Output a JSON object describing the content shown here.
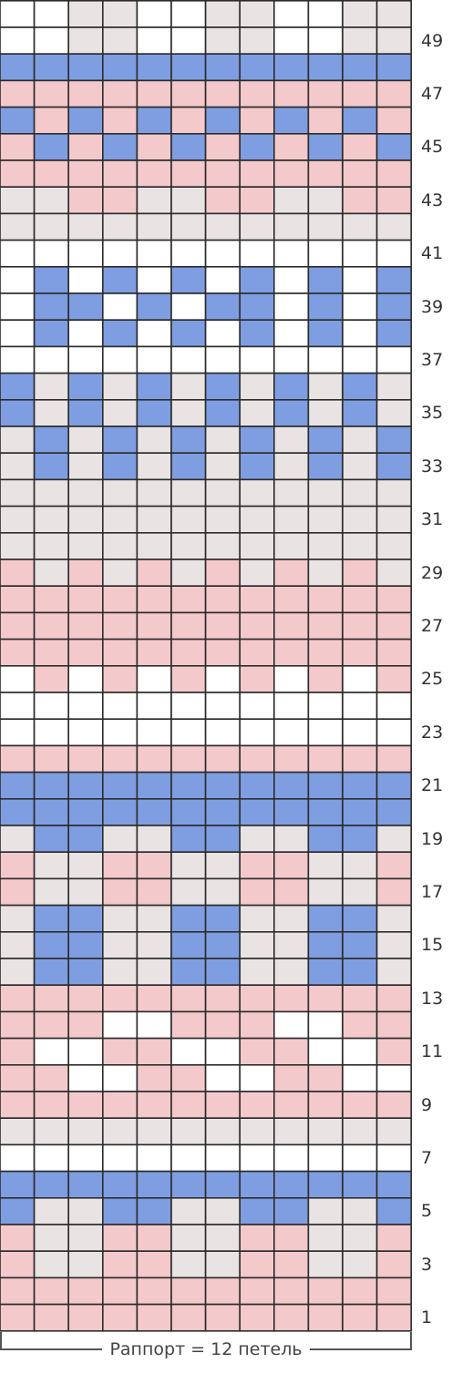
{
  "colors": {
    "W": "#ffffff",
    "G": "#e9e4e3",
    "P": "#f4c9cb",
    "B": "#7f9ee1",
    "grid": "#2b2b2b"
  },
  "legend_values": {
    "W": "white",
    "G": "light-grey",
    "P": "pink",
    "B": "blue"
  },
  "grid": {
    "columns": 12,
    "top_partial_row": "WWGGWWGGWWGG",
    "rows": [
      {
        "n": 1,
        "cells": "PPPPPPPPPPPP"
      },
      {
        "n": 2,
        "cells": "PPPPPPPPPPPP"
      },
      {
        "n": 3,
        "cells": "PGGPPGGPPGGP"
      },
      {
        "n": 4,
        "cells": "PGGPPGGPPGGP"
      },
      {
        "n": 5,
        "cells": "BGGBBGGBBGGB"
      },
      {
        "n": 6,
        "cells": "BBBBBBBBBBBB"
      },
      {
        "n": 7,
        "cells": "WWWWWWWWWWWW"
      },
      {
        "n": 8,
        "cells": "GGGGGGGGGGGG"
      },
      {
        "n": 9,
        "cells": "PPPPPPPPPPPP"
      },
      {
        "n": 10,
        "cells": "PPWWPPWWPPWW"
      },
      {
        "n": 11,
        "cells": "PWWPPWWPPWWP"
      },
      {
        "n": 12,
        "cells": "PPPWWPPPWWPP"
      },
      {
        "n": 13,
        "cells": "PPPPPPPPPPPP"
      },
      {
        "n": 14,
        "cells": "GBBGGBBGGBBG"
      },
      {
        "n": 15,
        "cells": "GBBGGBBGGBBG"
      },
      {
        "n": 16,
        "cells": "GBBGGBBGGBBG"
      },
      {
        "n": 17,
        "cells": "PGGPPGGPPGGP"
      },
      {
        "n": 18,
        "cells": "PGGPPGGPPGGP"
      },
      {
        "n": 19,
        "cells": "GBBGGBBGGBBG"
      },
      {
        "n": 20,
        "cells": "BBBBBBBBBBBB"
      },
      {
        "n": 21,
        "cells": "BBBBBBBBBBBB"
      },
      {
        "n": 22,
        "cells": "PPPPPPPPPPPP"
      },
      {
        "n": 23,
        "cells": "WWWWWWWWWWWW"
      },
      {
        "n": 24,
        "cells": "WWWWWWWWWWWW"
      },
      {
        "n": 25,
        "cells": "WPWPWPWPWPWP"
      },
      {
        "n": 26,
        "cells": "PPPPPPPPPPPP"
      },
      {
        "n": 27,
        "cells": "PPPPPPPPPPPP"
      },
      {
        "n": 28,
        "cells": "PPPPPPPPPPPP"
      },
      {
        "n": 29,
        "cells": "PGPGPGPGPGPG"
      },
      {
        "n": 30,
        "cells": "GGGGGGGGGGGG"
      },
      {
        "n": 31,
        "cells": "GGGGGGGGGGGG"
      },
      {
        "n": 32,
        "cells": "GGGGGGGGGGGG"
      },
      {
        "n": 33,
        "cells": "GBGBGBGBGBGB"
      },
      {
        "n": 34,
        "cells": "GBGBGBGBGBGB"
      },
      {
        "n": 35,
        "cells": "BGBGBGBGBGBG"
      },
      {
        "n": 36,
        "cells": "BGBGBGBGBGBG"
      },
      {
        "n": 37,
        "cells": "WWWWWWWWWWWW"
      },
      {
        "n": 38,
        "cells": "WBWBWBWBWBWB"
      },
      {
        "n": 39,
        "cells": "WBBWBWBBWBWB"
      },
      {
        "n": 40,
        "cells": "WBWBWBWBWBWB"
      },
      {
        "n": 41,
        "cells": "WWWWWWWWWWWW"
      },
      {
        "n": 42,
        "cells": "GGGGGGGGGGGG"
      },
      {
        "n": 43,
        "cells": "GGPPGGPPGGPP"
      },
      {
        "n": 44,
        "cells": "PPPPPPPPPPPP"
      },
      {
        "n": 45,
        "cells": "PBPBPBPBPBPB"
      },
      {
        "n": 46,
        "cells": "BPBPBPBPBPBP"
      },
      {
        "n": 47,
        "cells": "PPPPPPPPPPPP"
      },
      {
        "n": 48,
        "cells": "BBBBBBBBBBBB"
      },
      {
        "n": 49,
        "cells": "WWGGWWGGWWGG"
      }
    ]
  },
  "row_labels": [
    "1",
    "3",
    "5",
    "7",
    "9",
    "11",
    "13",
    "15",
    "17",
    "19",
    "21",
    "23",
    "25",
    "27",
    "29",
    "31",
    "33",
    "35",
    "37",
    "39",
    "41",
    "43",
    "45",
    "47",
    "49"
  ],
  "repeat_label": "Раппорт = 12 петель"
}
